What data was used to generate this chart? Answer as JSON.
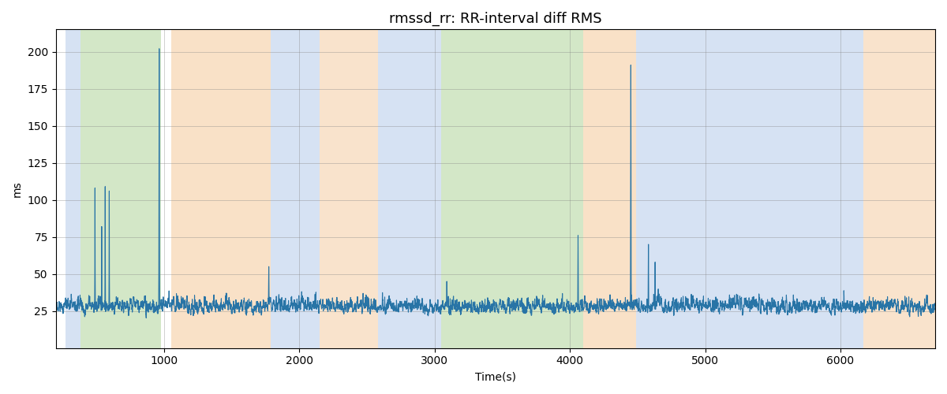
{
  "title": "rmssd_rr: RR-interval diff RMS",
  "xlabel": "Time(s)",
  "ylabel": "ms",
  "xlim": [
    200,
    6700
  ],
  "ylim": [
    0,
    215
  ],
  "yticks": [
    25,
    50,
    75,
    100,
    125,
    150,
    175,
    200
  ],
  "line_color": "#2874a6",
  "line_width": 0.8,
  "title_fontsize": 13,
  "label_fontsize": 10,
  "bands": [
    {
      "start": 270,
      "end": 385,
      "color": "#aec6e8",
      "alpha": 0.5
    },
    {
      "start": 385,
      "end": 975,
      "color": "#b0d49a",
      "alpha": 0.55
    },
    {
      "start": 1055,
      "end": 1790,
      "color": "#f5c99a",
      "alpha": 0.55
    },
    {
      "start": 1790,
      "end": 2150,
      "color": "#aec6e8",
      "alpha": 0.5
    },
    {
      "start": 2150,
      "end": 2580,
      "color": "#f5c99a",
      "alpha": 0.5
    },
    {
      "start": 2580,
      "end": 2950,
      "color": "#aec6e8",
      "alpha": 0.5
    },
    {
      "start": 2950,
      "end": 3050,
      "color": "#aec6e8",
      "alpha": 0.5
    },
    {
      "start": 3050,
      "end": 3350,
      "color": "#b0d49a",
      "alpha": 0.55
    },
    {
      "start": 3350,
      "end": 4100,
      "color": "#b0d49a",
      "alpha": 0.55
    },
    {
      "start": 4100,
      "end": 4490,
      "color": "#f5c99a",
      "alpha": 0.55
    },
    {
      "start": 4490,
      "end": 6170,
      "color": "#aec6e8",
      "alpha": 0.5
    },
    {
      "start": 6170,
      "end": 6700,
      "color": "#f5c99a",
      "alpha": 0.5
    }
  ],
  "seed": 17,
  "base_mean": 26,
  "base_std": 7
}
